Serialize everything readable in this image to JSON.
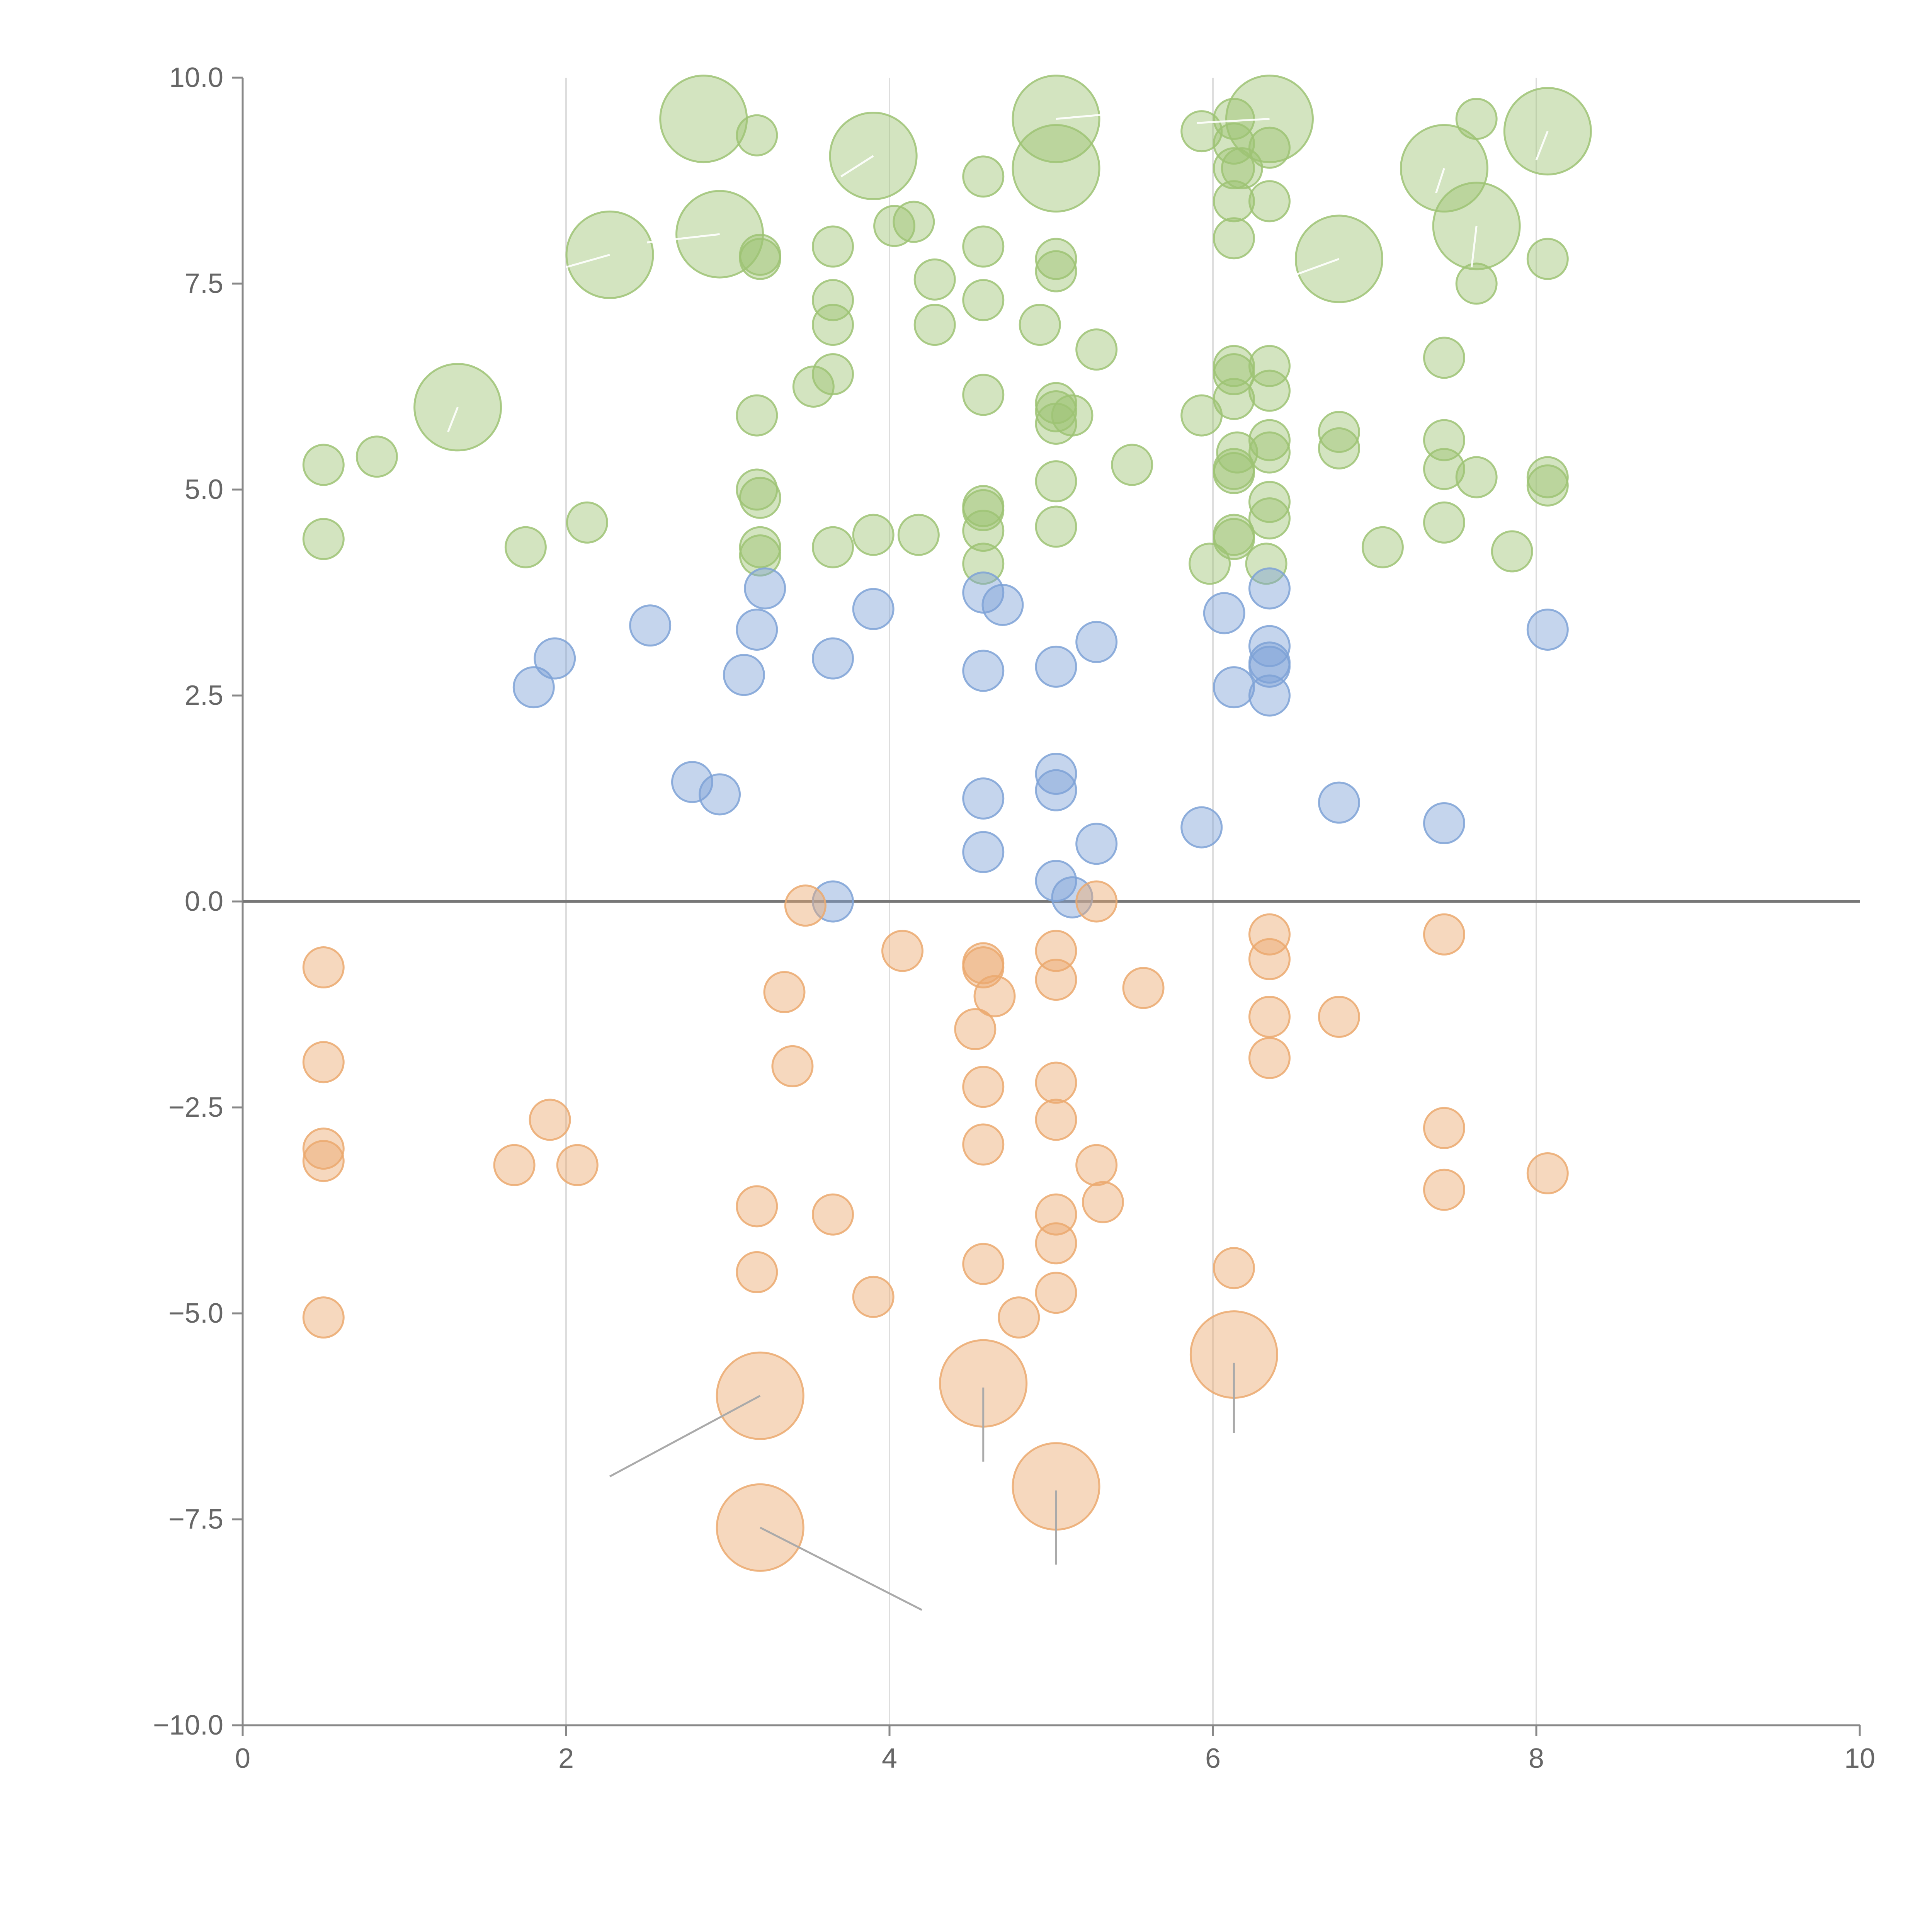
{
  "chart_data": {
    "type": "scatter",
    "title": "",
    "xlabel": "",
    "ylabel": "",
    "xlim": [
      0,
      10
    ],
    "ylim": [
      -10,
      10
    ],
    "x_ticks": [
      "0",
      "2",
      "4",
      "6",
      "8",
      "10"
    ],
    "y_ticks": [
      "10.0",
      "7.5",
      "5.0",
      "2.5",
      "0.0",
      "−2.5",
      "−5.0",
      "−7.5",
      "−10.0"
    ],
    "x_tick_values": [
      0,
      2,
      4,
      6,
      8,
      10
    ],
    "y_tick_values": [
      10,
      7.5,
      5,
      2.5,
      0,
      -2.5,
      -5,
      -7.5,
      -10
    ],
    "vertical_gridlines": [
      2,
      4,
      6,
      8
    ],
    "zero_line": true,
    "legend": "none",
    "series": [
      {
        "color": "#9dc374",
        "points": [
          [
            0.5,
            5.3
          ],
          [
            0.5,
            4.4
          ],
          [
            0.83,
            5.4
          ],
          [
            1.75,
            4.3
          ],
          [
            2.13,
            4.6
          ],
          [
            3.18,
            5.9
          ],
          [
            3.18,
            5.0
          ],
          [
            3.2,
            4.9
          ],
          [
            3.2,
            4.3
          ],
          [
            3.2,
            4.2
          ],
          [
            3.2,
            7.8
          ],
          [
            3.2,
            7.85
          ],
          [
            3.18,
            9.3
          ],
          [
            3.53,
            6.25
          ],
          [
            3.65,
            6.4
          ],
          [
            3.65,
            4.3
          ],
          [
            3.65,
            7.0
          ],
          [
            3.65,
            7.3
          ],
          [
            3.65,
            7.95
          ],
          [
            3.9,
            4.45
          ],
          [
            4.03,
            8.2
          ],
          [
            4.15,
            8.25
          ],
          [
            4.18,
            4.45
          ],
          [
            4.28,
            7.0
          ],
          [
            4.28,
            7.55
          ],
          [
            4.58,
            8.8
          ],
          [
            4.58,
            7.95
          ],
          [
            4.58,
            7.3
          ],
          [
            4.58,
            6.15
          ],
          [
            4.58,
            4.8
          ],
          [
            4.58,
            4.75
          ],
          [
            4.58,
            4.5
          ],
          [
            4.58,
            4.1
          ],
          [
            4.93,
            7.0
          ],
          [
            5.03,
            7.8
          ],
          [
            5.03,
            7.65
          ],
          [
            5.03,
            6.05
          ],
          [
            5.03,
            5.95
          ],
          [
            5.03,
            5.8
          ],
          [
            5.03,
            5.1
          ],
          [
            5.03,
            4.55
          ],
          [
            5.13,
            5.9
          ],
          [
            5.28,
            6.7
          ],
          [
            5.5,
            5.3
          ],
          [
            5.93,
            9.35
          ],
          [
            5.93,
            5.9
          ],
          [
            5.98,
            4.1
          ],
          [
            6.13,
            9.5
          ],
          [
            6.13,
            9.2
          ],
          [
            6.13,
            8.9
          ],
          [
            6.13,
            8.5
          ],
          [
            6.13,
            8.05
          ],
          [
            6.13,
            6.5
          ],
          [
            6.13,
            6.4
          ],
          [
            6.13,
            6.1
          ],
          [
            6.13,
            5.2
          ],
          [
            6.13,
            5.25
          ],
          [
            6.13,
            4.4
          ],
          [
            6.13,
            4.45
          ],
          [
            6.15,
            5.45
          ],
          [
            6.18,
            8.9
          ],
          [
            6.33,
            4.1
          ],
          [
            6.35,
            9.15
          ],
          [
            6.35,
            8.5
          ],
          [
            6.35,
            6.5
          ],
          [
            6.35,
            6.2
          ],
          [
            6.35,
            5.6
          ],
          [
            6.35,
            5.45
          ],
          [
            6.35,
            4.85
          ],
          [
            6.35,
            4.65
          ],
          [
            6.78,
            5.7
          ],
          [
            6.78,
            5.5
          ],
          [
            7.05,
            4.3
          ],
          [
            7.43,
            6.6
          ],
          [
            7.43,
            5.6
          ],
          [
            7.43,
            5.25
          ],
          [
            7.43,
            4.6
          ],
          [
            7.63,
            9.5
          ],
          [
            7.63,
            7.5
          ],
          [
            7.63,
            5.15
          ],
          [
            7.85,
            4.25
          ],
          [
            8.07,
            7.8
          ],
          [
            8.07,
            5.15
          ],
          [
            8.07,
            5.05
          ]
        ],
        "large_points": [
          [
            1.33,
            6.0
          ],
          [
            2.27,
            7.85
          ],
          [
            2.85,
            9.5
          ],
          [
            2.95,
            8.1
          ],
          [
            3.9,
            9.05
          ],
          [
            5.03,
            9.5
          ],
          [
            5.03,
            8.9
          ],
          [
            6.35,
            9.5
          ],
          [
            6.78,
            7.8
          ],
          [
            7.43,
            8.9
          ],
          [
            7.63,
            8.2
          ],
          [
            8.07,
            9.35
          ]
        ]
      },
      {
        "color": "#7ea2d6",
        "points": [
          [
            1.8,
            2.6
          ],
          [
            1.93,
            2.95
          ],
          [
            2.52,
            3.35
          ],
          [
            2.78,
            1.45
          ],
          [
            2.95,
            1.3
          ],
          [
            3.1,
            2.75
          ],
          [
            3.18,
            3.3
          ],
          [
            3.23,
            3.8
          ],
          [
            3.65,
            2.95
          ],
          [
            3.65,
            0.0
          ],
          [
            3.9,
            3.55
          ],
          [
            4.58,
            3.75
          ],
          [
            4.58,
            2.8
          ],
          [
            4.58,
            1.25
          ],
          [
            4.58,
            0.6
          ],
          [
            4.7,
            3.6
          ],
          [
            5.03,
            2.85
          ],
          [
            5.03,
            1.55
          ],
          [
            5.03,
            1.35
          ],
          [
            5.03,
            0.25
          ],
          [
            5.13,
            0.05
          ],
          [
            5.28,
            3.15
          ],
          [
            5.28,
            0.7
          ],
          [
            5.93,
            0.9
          ],
          [
            6.07,
            3.5
          ],
          [
            6.13,
            2.6
          ],
          [
            6.35,
            3.8
          ],
          [
            6.35,
            3.1
          ],
          [
            6.35,
            2.9
          ],
          [
            6.35,
            2.85
          ],
          [
            6.35,
            2.5
          ],
          [
            6.78,
            1.2
          ],
          [
            7.43,
            0.95
          ],
          [
            8.07,
            3.3
          ]
        ],
        "large_points": []
      },
      {
        "color": "#eba96e",
        "points": [
          [
            0.5,
            -0.8
          ],
          [
            0.5,
            -1.95
          ],
          [
            0.5,
            -3.0
          ],
          [
            0.5,
            -3.15
          ],
          [
            0.5,
            -5.05
          ],
          [
            1.68,
            -3.2
          ],
          [
            1.9,
            -2.65
          ],
          [
            2.07,
            -3.2
          ],
          [
            3.18,
            -3.7
          ],
          [
            3.18,
            -4.5
          ],
          [
            3.35,
            -1.1
          ],
          [
            3.4,
            -2.0
          ],
          [
            3.48,
            -0.05
          ],
          [
            3.65,
            -3.8
          ],
          [
            3.9,
            -4.8
          ],
          [
            4.08,
            -0.6
          ],
          [
            4.53,
            -1.55
          ],
          [
            4.58,
            -0.75
          ],
          [
            4.58,
            -0.8
          ],
          [
            4.58,
            -2.25
          ],
          [
            4.58,
            -2.95
          ],
          [
            4.58,
            -4.4
          ],
          [
            4.65,
            -1.15
          ],
          [
            4.8,
            -5.05
          ],
          [
            5.03,
            -0.6
          ],
          [
            5.03,
            -0.95
          ],
          [
            5.03,
            -2.2
          ],
          [
            5.03,
            -2.65
          ],
          [
            5.03,
            -3.8
          ],
          [
            5.03,
            -4.15
          ],
          [
            5.03,
            -4.75
          ],
          [
            5.28,
            0.0
          ],
          [
            5.28,
            -3.2
          ],
          [
            5.32,
            -3.65
          ],
          [
            5.57,
            -1.05
          ],
          [
            6.13,
            -4.45
          ],
          [
            6.35,
            -0.4
          ],
          [
            6.35,
            -0.7
          ],
          [
            6.35,
            -1.4
          ],
          [
            6.35,
            -1.9
          ],
          [
            6.78,
            -1.4
          ],
          [
            7.43,
            -0.4
          ],
          [
            7.43,
            -2.75
          ],
          [
            7.43,
            -3.5
          ],
          [
            8.07,
            -3.3
          ]
        ],
        "large_points": [
          [
            3.2,
            -6.0
          ],
          [
            3.2,
            -7.6
          ],
          [
            4.58,
            -5.85
          ],
          [
            5.03,
            -7.1
          ],
          [
            6.13,
            -5.5
          ]
        ]
      }
    ]
  }
}
